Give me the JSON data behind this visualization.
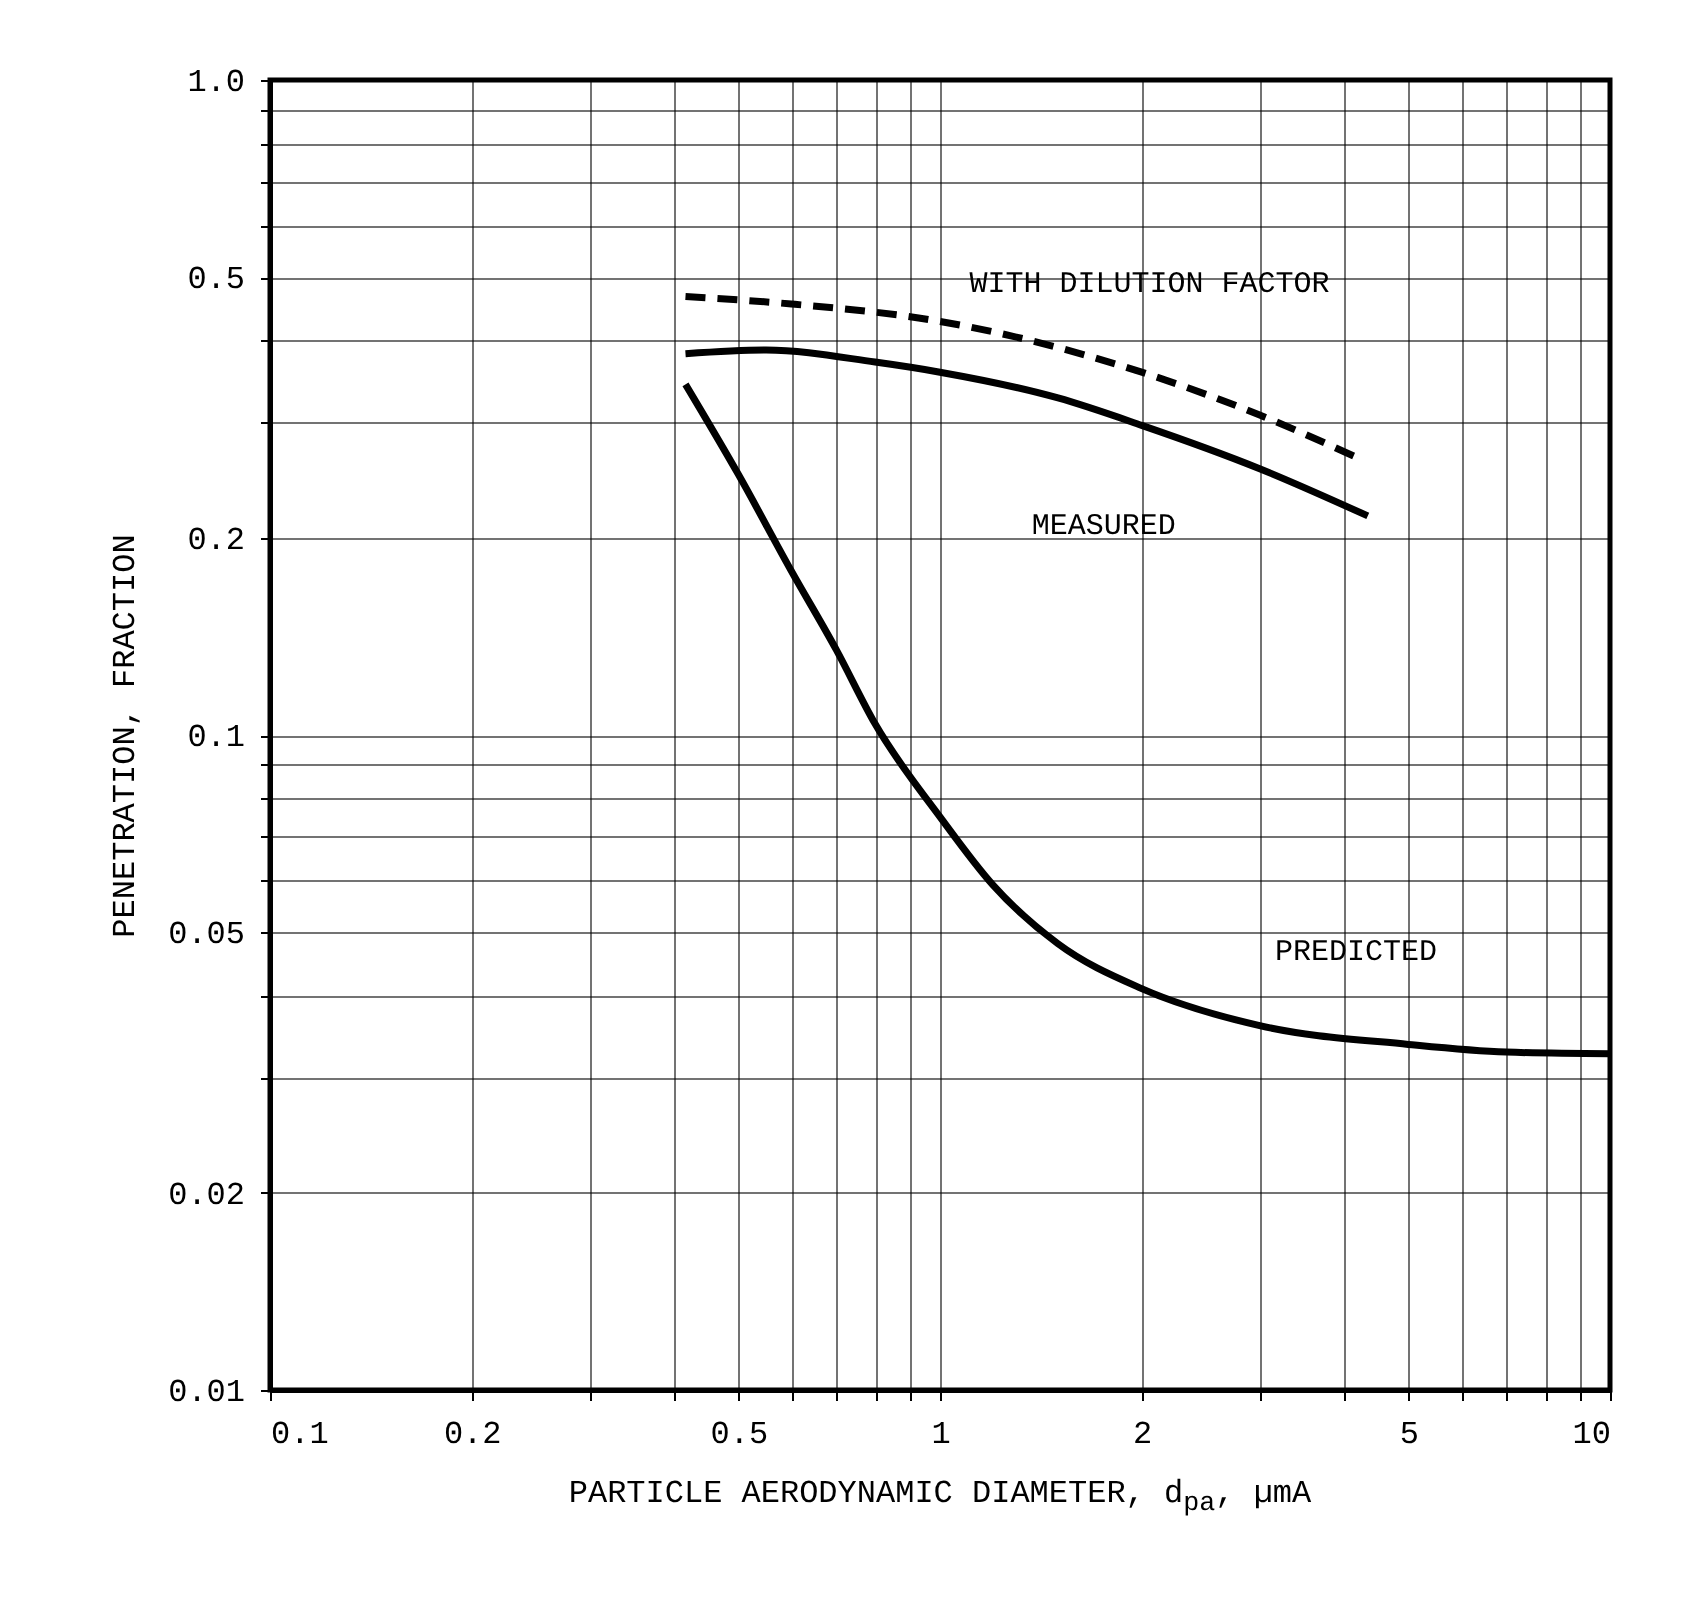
{
  "chart_data": {
    "type": "line",
    "xlabel": "PARTICLE AERODYNAMIC DIAMETER, d$_{pa}$, µmA",
    "ylabel": "PENETRATION, FRACTION",
    "log": "xy",
    "grid": true,
    "marker": "none",
    "xlim": [
      0.1,
      10
    ],
    "ylim": [
      0.01,
      1
    ],
    "xticks": [
      0.1,
      0.2,
      {
        "value": 0.3,
        "label": null
      },
      {
        "value": 0.4,
        "label": null
      },
      0.5,
      {
        "value": 0.6,
        "label": null
      },
      {
        "value": 0.7,
        "label": null
      },
      {
        "value": 0.8,
        "label": null
      },
      {
        "value": 0.9,
        "label": null
      },
      1,
      2,
      {
        "value": 3,
        "label": null
      },
      {
        "value": 4,
        "label": null
      },
      5,
      {
        "value": 6,
        "label": null
      },
      {
        "value": 7,
        "label": null
      },
      {
        "value": 8,
        "label": null
      },
      {
        "value": 9,
        "label": null
      },
      10
    ],
    "yticks": [
      0.01,
      0.02,
      {
        "value": 0.03,
        "label": null
      },
      {
        "value": 0.04,
        "label": null
      },
      0.05,
      {
        "value": 0.06,
        "label": null
      },
      {
        "value": 0.07,
        "label": null
      },
      {
        "value": 0.08,
        "label": null
      },
      {
        "value": 0.09,
        "label": null
      },
      0.1,
      0.2,
      {
        "value": 0.3,
        "label": null
      },
      {
        "value": 0.4,
        "label": null
      },
      0.5,
      {
        "value": 0.6,
        "label": null
      },
      {
        "value": 0.7,
        "label": null
      },
      {
        "value": 0.8,
        "label": null
      },
      {
        "value": 0.9,
        "label": null
      },
      {
        "value": 1,
        "label": "1.0"
      }
    ],
    "series": [
      {
        "name": "WITH DILUTION FACTOR",
        "color": "#000000",
        "line_style": "dashed",
        "x": [
          0.417,
          0.6,
          1,
          2,
          3,
          4.2
        ],
        "values": [
          0.467,
          0.455,
          0.428,
          0.358,
          0.308,
          0.265
        ]
      },
      {
        "name": "MEASURED",
        "color": "#000000",
        "line_style": "solid",
        "x": [
          0.417,
          0.55,
          0.8,
          1,
          1.5,
          2,
          3,
          4.35
        ],
        "values": [
          0.382,
          0.387,
          0.371,
          0.358,
          0.327,
          0.297,
          0.255,
          0.216
        ]
      },
      {
        "name": "PREDICTED",
        "color": "#000000",
        "line_style": "solid",
        "x": [
          0.417,
          0.5,
          0.6,
          0.7,
          0.8,
          1,
          1.2,
          1.5,
          2,
          3,
          5,
          7,
          10
        ],
        "values": [
          0.343,
          0.25,
          0.178,
          0.135,
          0.104,
          0.075,
          0.059,
          0.048,
          0.041,
          0.036,
          0.0337,
          0.0328,
          0.0326
        ]
      }
    ]
  }
}
